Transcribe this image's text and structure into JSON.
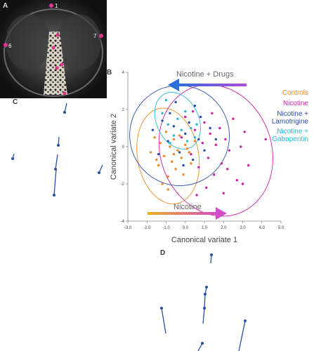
{
  "panels": {
    "a": "A",
    "b": "B",
    "c": "C",
    "d": "D"
  },
  "photo": {
    "landmarks": [
      "1",
      "6",
      "7"
    ]
  },
  "arrows": {
    "top_label": "Nicotine + Drugs",
    "bottom_label": "Nicotine"
  },
  "legend": [
    {
      "label": "Controls",
      "color": "#ee8a22"
    },
    {
      "label": "Nicotine",
      "color": "#cc22aa"
    },
    {
      "label": "Nicotine +\nLamotrigine",
      "color": "#2a4fa8"
    },
    {
      "label": "Nicotine +\nGabapentin",
      "color": "#27b8d8"
    }
  ],
  "colors": {
    "controls": "#ee8a22",
    "nicotine": "#cc22aa",
    "lamotrigine": "#2a4fa8",
    "gabapentin": "#27b8d8",
    "vector_line": "#2a4fa8",
    "landmark_dot": "#e0338a"
  },
  "chart_data": {
    "type": "scatter",
    "xlabel": "Canonical variate 1",
    "ylabel": "Canonical variate 2",
    "xlim": [
      -3.0,
      5.0
    ],
    "ylim": [
      -4,
      4
    ],
    "xticks": [
      "-3.0",
      "-2.0",
      "-1.0",
      "0.0",
      "1.0",
      "2.0",
      "3.0",
      "4.0",
      "5.0"
    ],
    "yticks": [
      "4",
      "2",
      "0",
      "-2",
      "-4"
    ],
    "series": [
      {
        "name": "Controls",
        "points": [
          [
            -1.8,
            -0.3
          ],
          [
            -1.6,
            0.5
          ],
          [
            -1.4,
            -1.0
          ],
          [
            -1.3,
            0.2
          ],
          [
            -1.1,
            -0.5
          ],
          [
            -1.0,
            0.8
          ],
          [
            -0.9,
            -1.6
          ],
          [
            -0.8,
            0.0
          ],
          [
            -0.7,
            -0.8
          ],
          [
            -0.6,
            0.4
          ],
          [
            -0.5,
            -1.2
          ],
          [
            -0.4,
            -0.2
          ],
          [
            -0.3,
            0.6
          ],
          [
            -0.2,
            -0.6
          ],
          [
            -0.1,
            -1.5
          ],
          [
            0.0,
            0.1
          ],
          [
            0.2,
            -0.3
          ],
          [
            0.3,
            -0.9
          ],
          [
            0.5,
            0.3
          ],
          [
            -1.2,
            -2.0
          ],
          [
            -0.9,
            -2.3
          ],
          [
            -1.5,
            -0.7
          ],
          [
            0.1,
            -0.1
          ],
          [
            -0.6,
            -0.4
          ]
        ]
      },
      {
        "name": "Nicotine",
        "points": [
          [
            -0.2,
            0.5
          ],
          [
            0.0,
            1.6
          ],
          [
            0.3,
            -0.4
          ],
          [
            0.5,
            0.9
          ],
          [
            0.7,
            -1.1
          ],
          [
            0.9,
            0.2
          ],
          [
            1.0,
            1.3
          ],
          [
            1.2,
            -0.6
          ],
          [
            1.3,
            0.7
          ],
          [
            1.5,
            -1.5
          ],
          [
            1.6,
            0.1
          ],
          [
            1.8,
            1.0
          ],
          [
            1.9,
            -0.9
          ],
          [
            2.1,
            0.4
          ],
          [
            2.3,
            -0.2
          ],
          [
            2.5,
            1.5
          ],
          [
            2.7,
            -1.8
          ],
          [
            2.9,
            0.0
          ],
          [
            3.1,
            0.8
          ],
          [
            3.3,
            -1.0
          ],
          [
            1.1,
            -2.2
          ],
          [
            0.6,
            -2.6
          ],
          [
            2.0,
            -2.5
          ],
          [
            4.2,
            0.4
          ],
          [
            3.0,
            -2.0
          ],
          [
            0.4,
            1.9
          ],
          [
            1.4,
            1.8
          ],
          [
            2.2,
            -1.2
          ]
        ]
      },
      {
        "name": "Nicotine + Lamotrigine",
        "points": [
          [
            -1.7,
            0.9
          ],
          [
            -1.2,
            1.4
          ],
          [
            -0.9,
            0.3
          ],
          [
            -0.6,
            1.1
          ],
          [
            -0.3,
            -0.3
          ],
          [
            0.0,
            0.7
          ],
          [
            0.2,
            1.3
          ],
          [
            0.4,
            -0.7
          ],
          [
            0.7,
            0.4
          ],
          [
            1.0,
            -0.2
          ],
          [
            1.3,
            1.0
          ],
          [
            -1.4,
            -0.4
          ],
          [
            -0.1,
            -1.0
          ],
          [
            0.8,
            1.6
          ],
          [
            1.6,
            0.4
          ],
          [
            -0.8,
            1.8
          ],
          [
            0.5,
            2.2
          ],
          [
            -0.5,
            2.4
          ]
        ]
      },
      {
        "name": "Nicotine + Gabapentin",
        "points": [
          [
            -1.2,
            1.8
          ],
          [
            -0.9,
            1.2
          ],
          [
            -0.6,
            0.6
          ],
          [
            -0.4,
            1.5
          ],
          [
            -0.2,
            0.9
          ],
          [
            0.1,
            0.3
          ],
          [
            0.3,
            1.0
          ],
          [
            0.5,
            0.5
          ],
          [
            -0.8,
            0.2
          ],
          [
            0.0,
            1.9
          ],
          [
            -1.0,
            2.5
          ],
          [
            0.6,
            1.2
          ]
        ]
      }
    ],
    "ellipses": [
      {
        "series": "Controls",
        "cx": -0.9,
        "cy": -0.5,
        "rx": 1.6,
        "ry": 2.6,
        "angle": -10
      },
      {
        "series": "Nicotine",
        "cx": 1.6,
        "cy": -0.2,
        "rx": 2.9,
        "ry": 3.6,
        "angle": -20
      },
      {
        "series": "Nicotine + Lamotrigine",
        "cx": -0.3,
        "cy": 0.6,
        "rx": 2.6,
        "ry": 2.7,
        "angle": -25
      },
      {
        "series": "Nicotine + Gabapentin",
        "cx": -0.4,
        "cy": 1.4,
        "rx": 1.1,
        "ry": 1.6,
        "angle": -25
      }
    ]
  }
}
